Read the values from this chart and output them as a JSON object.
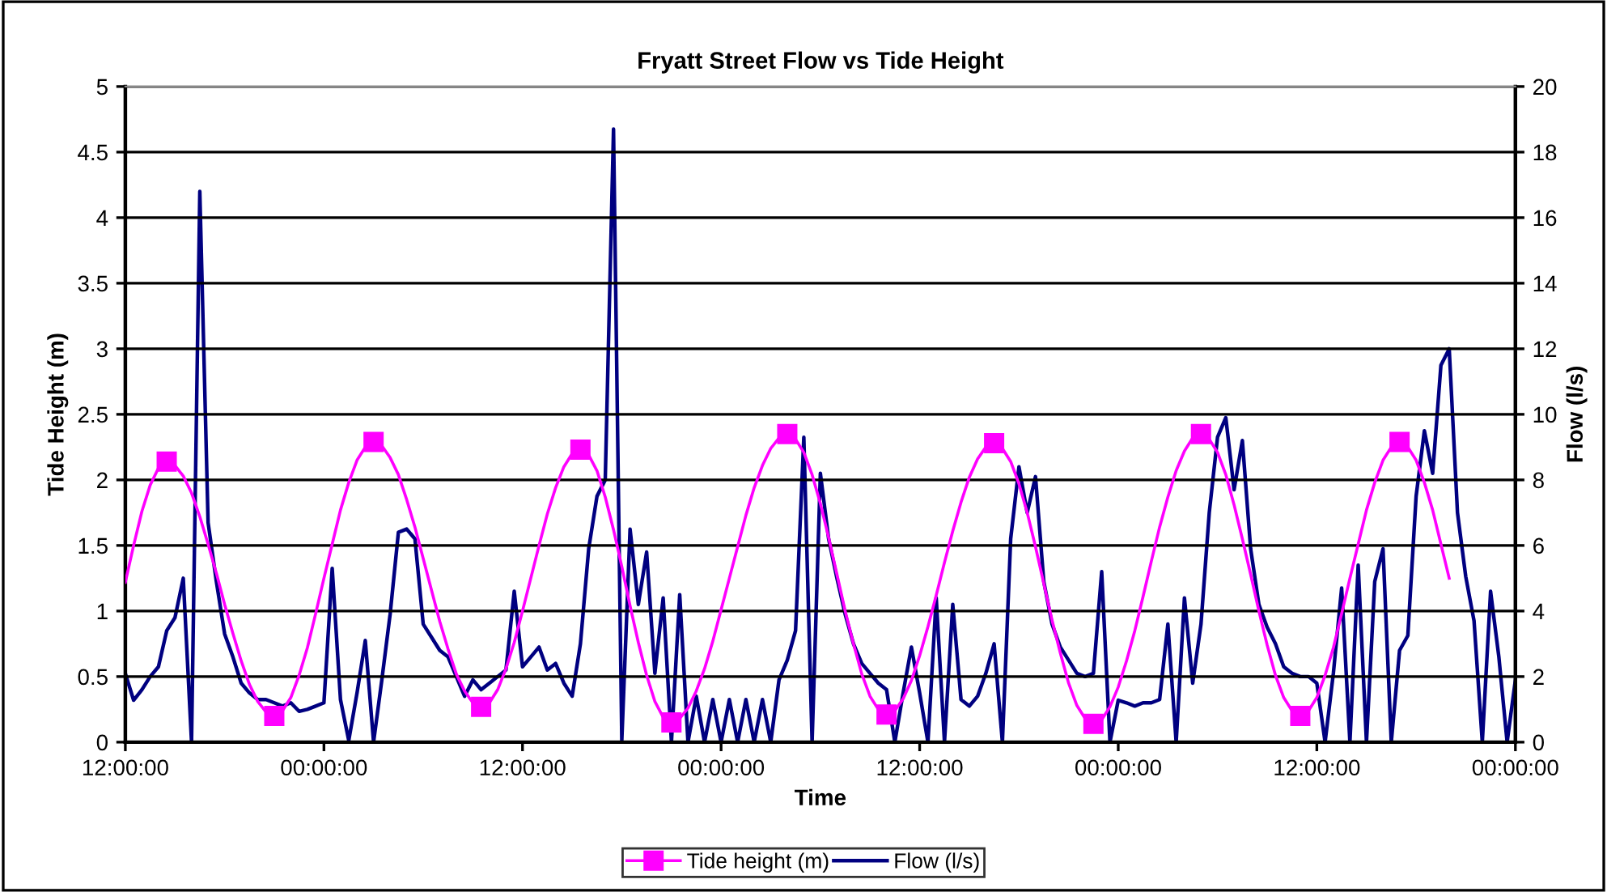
{
  "chart_data": {
    "type": "line",
    "title": "Fryatt Street Flow vs Tide Height",
    "xlabel": "Time",
    "ylabel": "Tide Height (m)",
    "y2label": "Flow (l/s)",
    "categories": [
      "12:00:00",
      null,
      null,
      null,
      null,
      null,
      null,
      null,
      null,
      null,
      null,
      null,
      null,
      null,
      null,
      null,
      null,
      null,
      null,
      null,
      null,
      null,
      null,
      null,
      "00:00:00",
      null,
      null,
      null,
      null,
      null,
      null,
      null,
      null,
      null,
      null,
      null,
      null,
      null,
      null,
      null,
      null,
      null,
      null,
      null,
      null,
      null,
      null,
      null,
      "12:00:00",
      null,
      null,
      null,
      null,
      null,
      null,
      null,
      null,
      null,
      null,
      null,
      null,
      null,
      null,
      null,
      null,
      null,
      null,
      null,
      null,
      null,
      null,
      null,
      "00:00:00",
      null,
      null,
      null,
      null,
      null,
      null,
      null,
      null,
      null,
      null,
      null,
      null,
      null,
      null,
      null,
      null,
      null,
      null,
      null,
      null,
      null,
      null,
      null,
      "12:00:00",
      null,
      null,
      null,
      null,
      null,
      null,
      null,
      null,
      null,
      null,
      null,
      null,
      null,
      null,
      null,
      null,
      null,
      null,
      null,
      null,
      null,
      null,
      null,
      "00:00:00",
      null,
      null,
      null,
      null,
      null,
      null,
      null,
      null,
      null,
      null,
      null,
      null,
      null,
      null,
      null,
      null,
      null,
      null,
      null,
      null,
      null,
      null,
      null,
      "12:00:00",
      null,
      null,
      null,
      null,
      null,
      null,
      null,
      null,
      null,
      null,
      null,
      null,
      null,
      null,
      null,
      null,
      null,
      null,
      null,
      null,
      null,
      null,
      null,
      "00:00:00"
    ],
    "ylim": [
      0,
      5
    ],
    "yticks": [
      0,
      0.5,
      1,
      1.5,
      2,
      2.5,
      3,
      3.5,
      4,
      4.5,
      5
    ],
    "y2lim": [
      0,
      20
    ],
    "y2ticks": [
      0,
      2,
      4,
      6,
      8,
      10,
      12,
      14,
      16,
      18,
      20
    ],
    "grid": "y",
    "legend": "bottom",
    "series": [
      {
        "name": "Tide height (m)",
        "color": "#ff00ff",
        "marker": "none",
        "line_style": "solid",
        "values": [
          1.22,
          1.5,
          1.76,
          1.96,
          2.09,
          2.14,
          2.11,
          2.03,
          1.9,
          1.72,
          1.51,
          1.29,
          1.05,
          0.83,
          0.62,
          0.44,
          0.31,
          0.23,
          0.2,
          0.24,
          0.34,
          0.51,
          0.72,
          0.98,
          1.25,
          1.51,
          1.77,
          1.98,
          2.15,
          2.25,
          2.29,
          2.26,
          2.17,
          2.04,
          1.85,
          1.64,
          1.4,
          1.16,
          0.92,
          0.71,
          0.52,
          0.39,
          0.3,
          0.27,
          0.3,
          0.4,
          0.56,
          0.76,
          1.0,
          1.25,
          1.5,
          1.74,
          1.94,
          2.1,
          2.2,
          2.23,
          2.19,
          2.07,
          1.87,
          1.62,
          1.34,
          1.04,
          0.76,
          0.51,
          0.31,
          0.19,
          0.15,
          0.18,
          0.26,
          0.39,
          0.56,
          0.77,
          1.01,
          1.25,
          1.49,
          1.73,
          1.94,
          2.11,
          2.24,
          2.32,
          2.35,
          2.31,
          2.21,
          2.04,
          1.82,
          1.56,
          1.28,
          1.0,
          0.75,
          0.52,
          0.35,
          0.25,
          0.21,
          0.24,
          0.33,
          0.47,
          0.66,
          0.88,
          1.12,
          1.37,
          1.61,
          1.83,
          2.02,
          2.16,
          2.25,
          2.28,
          2.24,
          2.14,
          1.97,
          1.75,
          1.49,
          1.21,
          0.93,
          0.68,
          0.45,
          0.28,
          0.18,
          0.14,
          0.17,
          0.27,
          0.42,
          0.62,
          0.85,
          1.11,
          1.38,
          1.64,
          1.87,
          2.07,
          2.22,
          2.32,
          2.35,
          2.31,
          2.21,
          2.04,
          1.81,
          1.55,
          1.28,
          1.0,
          0.74,
          0.51,
          0.34,
          0.24,
          0.2,
          0.24,
          0.34,
          0.51,
          0.72,
          0.98,
          1.25,
          1.51,
          1.77,
          1.98,
          2.15,
          2.25,
          2.29,
          2.25,
          2.15,
          1.98,
          1.77,
          1.51,
          1.25,
          null,
          null,
          null,
          null,
          null,
          null,
          null,
          null
        ]
      },
      {
        "type": "scatter",
        "color": "#ff00ff",
        "marker": "square",
        "values": [
          null,
          null,
          null,
          null,
          null,
          2.14,
          null,
          null,
          null,
          null,
          null,
          null,
          null,
          null,
          null,
          null,
          null,
          null,
          0.2,
          null,
          null,
          null,
          null,
          null,
          null,
          null,
          null,
          null,
          null,
          null,
          2.29,
          null,
          null,
          null,
          null,
          null,
          null,
          null,
          null,
          null,
          null,
          null,
          null,
          0.27,
          null,
          null,
          null,
          null,
          null,
          null,
          null,
          null,
          null,
          null,
          null,
          2.23,
          null,
          null,
          null,
          null,
          null,
          null,
          null,
          null,
          null,
          null,
          0.15,
          null,
          null,
          null,
          null,
          null,
          null,
          null,
          null,
          null,
          null,
          null,
          null,
          null,
          2.35,
          null,
          null,
          null,
          null,
          null,
          null,
          null,
          null,
          null,
          null,
          null,
          0.21,
          null,
          null,
          null,
          null,
          null,
          null,
          null,
          null,
          null,
          null,
          null,
          null,
          2.28,
          null,
          null,
          null,
          null,
          null,
          null,
          null,
          null,
          null,
          null,
          null,
          0.14,
          null,
          null,
          null,
          null,
          null,
          null,
          null,
          null,
          null,
          null,
          null,
          null,
          2.35,
          null,
          null,
          null,
          null,
          null,
          null,
          null,
          null,
          null,
          null,
          null,
          0.2,
          null,
          null,
          null,
          null,
          null,
          null,
          null,
          null,
          null,
          null,
          null,
          2.29,
          null,
          null,
          null,
          null,
          null,
          null,
          null,
          null,
          null,
          null,
          null,
          null,
          null,
          null
        ]
      },
      {
        "name": "Flow (l/s)",
        "color": "#000080",
        "marker": "none",
        "line_style": "solid",
        "axis": "y2",
        "values": [
          2.09,
          1.28,
          1.6,
          2.0,
          2.3,
          3.4,
          3.8,
          5.0,
          0,
          16.8,
          6.7,
          4.9,
          3.3,
          2.6,
          1.8,
          1.5,
          1.3,
          1.3,
          1.2,
          1.1,
          1.2,
          0.94,
          1.0,
          1.1,
          1.2,
          5.3,
          1.3,
          0.05,
          1.5,
          3.1,
          0,
          1.9,
          3.9,
          6.4,
          6.5,
          6.2,
          3.6,
          3.2,
          2.8,
          2.6,
          2.0,
          1.4,
          1.9,
          1.6,
          1.8,
          2.0,
          2.2,
          4.6,
          2.3,
          2.6,
          2.9,
          2.2,
          2.4,
          1.8,
          1.4,
          3.0,
          5.9,
          7.5,
          8.0,
          18.7,
          0.05,
          6.5,
          4.2,
          5.8,
          2.1,
          4.4,
          0,
          4.5,
          0,
          1.4,
          0,
          1.3,
          0,
          1.3,
          0,
          1.3,
          0,
          1.3,
          0,
          1.9,
          2.5,
          3.4,
          9.3,
          0,
          8.2,
          6.2,
          5.0,
          3.9,
          3.0,
          2.4,
          2.1,
          1.8,
          1.6,
          0,
          1.5,
          2.9,
          1.5,
          0,
          4.4,
          0,
          4.2,
          1.3,
          1.1,
          1.4,
          2.1,
          3.0,
          0,
          6.2,
          8.4,
          7.0,
          8.1,
          4.9,
          3.6,
          2.9,
          2.5,
          2.1,
          2.0,
          2.1,
          5.2,
          0,
          1.28,
          1.2,
          1.1,
          1.2,
          1.2,
          1.3,
          3.6,
          0,
          4.4,
          1.8,
          3.6,
          7.0,
          9.3,
          9.9,
          7.7,
          9.2,
          5.9,
          4.2,
          3.5,
          3.0,
          2.3,
          2.1,
          2.0,
          2.0,
          1.8,
          0,
          2.1,
          4.7,
          0,
          5.4,
          0,
          4.9,
          5.9,
          0,
          2.8,
          3.25,
          7.5,
          9.5,
          8.2,
          11.5,
          12.0,
          7.0,
          5.05,
          3.7,
          0,
          4.6,
          2.6,
          0,
          1.9
        ]
      }
    ]
  }
}
